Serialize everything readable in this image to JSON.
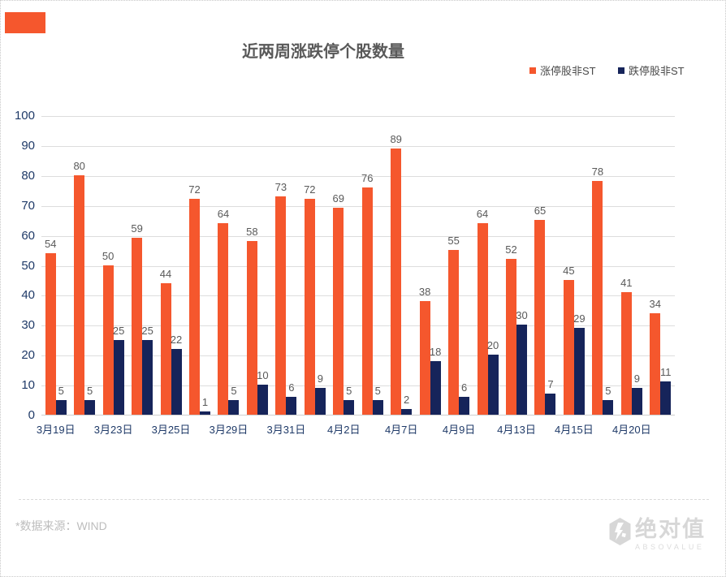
{
  "chart_data": {
    "type": "bar",
    "title": "近两周涨跌停个股数量",
    "categories": [
      "3月19日",
      "",
      "3月23日",
      "",
      "3月25日",
      "",
      "3月29日",
      "",
      "3月31日",
      "",
      "4月2日",
      "",
      "4月7日",
      "",
      "4月9日",
      "",
      "4月13日",
      "",
      "4月15日",
      "",
      "4月20日",
      ""
    ],
    "series": [
      {
        "name": "涨停股非ST",
        "color": "#F5572D",
        "values": [
          54,
          80,
          50,
          59,
          44,
          72,
          64,
          58,
          73,
          72,
          69,
          76,
          89,
          38,
          55,
          64,
          52,
          65,
          45,
          78,
          41,
          34
        ]
      },
      {
        "name": "跌停股非ST",
        "color": "#16245A",
        "values": [
          5,
          5,
          25,
          25,
          22,
          1,
          5,
          10,
          6,
          9,
          5,
          5,
          2,
          18,
          6,
          20,
          30,
          7,
          29,
          5,
          9,
          11
        ]
      }
    ],
    "ylim": [
      0,
      100
    ],
    "y_ticks": [
      0,
      10,
      20,
      30,
      40,
      50,
      60,
      70,
      80,
      90,
      100
    ],
    "grid": true,
    "legend_position": "top-right",
    "data_labels": true
  },
  "colors": {
    "accent": "#F5572D",
    "bar_down": "#16245A",
    "axis_label": "#1F3A68",
    "value_label": "#595959",
    "gridline": "#DDDDDD"
  },
  "footer": {
    "source": "*数据来源：WIND"
  },
  "brand": {
    "name_cn": "绝对值",
    "name_en": "ABSOVALUE"
  }
}
